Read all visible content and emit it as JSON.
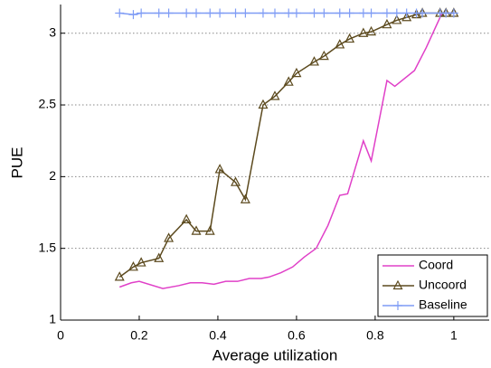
{
  "chart_data": {
    "type": "line",
    "xlabel": "Average utilization",
    "ylabel": "PUE",
    "xlim": [
      0,
      1.09
    ],
    "ylim": [
      1,
      3.2
    ],
    "xticks": [
      0,
      0.2,
      0.4,
      0.6,
      0.8,
      1
    ],
    "yticks": [
      1,
      1.5,
      2,
      2.5,
      3
    ],
    "grid": true,
    "legend": "lower right",
    "series": [
      {
        "name": "Coord",
        "color": "#e040c8",
        "marker": "none",
        "x": [
          0.15,
          0.18,
          0.2,
          0.26,
          0.3,
          0.33,
          0.36,
          0.39,
          0.42,
          0.45,
          0.48,
          0.51,
          0.53,
          0.56,
          0.59,
          0.62,
          0.65,
          0.68,
          0.71,
          0.73,
          0.77,
          0.79,
          0.83,
          0.85,
          0.9,
          0.93,
          0.97,
          1.0
        ],
        "values": [
          1.23,
          1.26,
          1.27,
          1.22,
          1.24,
          1.26,
          1.26,
          1.25,
          1.27,
          1.27,
          1.29,
          1.29,
          1.3,
          1.33,
          1.37,
          1.44,
          1.5,
          1.66,
          1.87,
          1.88,
          2.25,
          2.11,
          2.67,
          2.63,
          2.74,
          2.9,
          3.14,
          3.14
        ]
      },
      {
        "name": "Uncoord",
        "color": "#5c4a1e",
        "marker": "triangle",
        "x": [
          0.15,
          0.185,
          0.205,
          0.25,
          0.275,
          0.32,
          0.345,
          0.38,
          0.405,
          0.445,
          0.47,
          0.515,
          0.545,
          0.58,
          0.6,
          0.645,
          0.67,
          0.71,
          0.735,
          0.77,
          0.79,
          0.83,
          0.855,
          0.88,
          0.905,
          0.92,
          0.965,
          0.98,
          1.0
        ],
        "values": [
          1.3,
          1.37,
          1.4,
          1.43,
          1.57,
          1.7,
          1.62,
          1.62,
          2.05,
          1.96,
          1.84,
          2.5,
          2.56,
          2.66,
          2.72,
          2.8,
          2.84,
          2.92,
          2.96,
          3.0,
          3.01,
          3.06,
          3.09,
          3.11,
          3.13,
          3.14,
          3.14,
          3.14,
          3.14
        ]
      },
      {
        "name": "Baseline",
        "color": "#7f9cf5",
        "marker": "plus",
        "x": [
          0.15,
          0.185,
          0.205,
          0.25,
          0.275,
          0.32,
          0.345,
          0.38,
          0.405,
          0.445,
          0.47,
          0.515,
          0.545,
          0.58,
          0.6,
          0.645,
          0.67,
          0.71,
          0.735,
          0.77,
          0.79,
          0.83,
          0.855,
          0.88,
          0.905,
          0.92,
          0.965,
          0.98,
          1.0
        ],
        "values": [
          3.14,
          3.13,
          3.14,
          3.14,
          3.14,
          3.14,
          3.14,
          3.14,
          3.14,
          3.14,
          3.14,
          3.14,
          3.14,
          3.14,
          3.14,
          3.14,
          3.14,
          3.14,
          3.14,
          3.14,
          3.14,
          3.14,
          3.14,
          3.14,
          3.14,
          3.14,
          3.14,
          3.14,
          3.14
        ]
      }
    ]
  }
}
